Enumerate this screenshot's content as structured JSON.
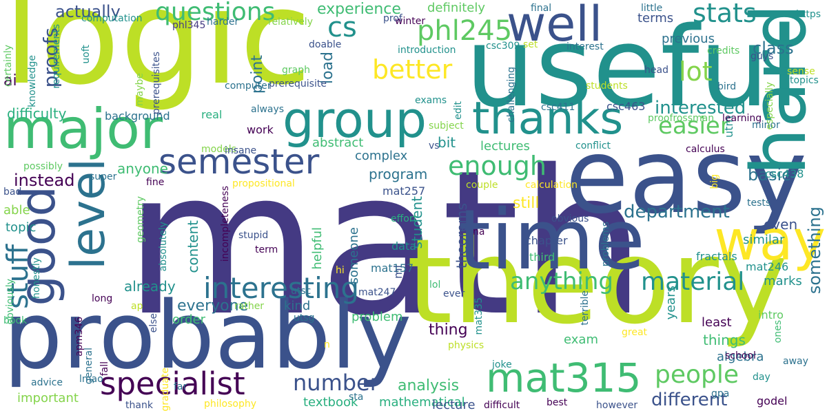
{
  "palette": {
    "lime": "#bddf26",
    "yellow": "#fde725",
    "green": "#5ec962",
    "light_green": "#84d44b",
    "emerald": "#3fbc73",
    "teal": "#21918c",
    "teal_dark": "#2c728e",
    "blue": "#3b528b",
    "indigo": "#443a83",
    "purple": "#440154",
    "mint": "#29af7f"
  },
  "words": [
    {
      "text": "math",
      "color": "indigo"
    },
    {
      "text": "logic",
      "color": "lime"
    },
    {
      "text": "theory",
      "color": "lime"
    },
    {
      "text": "useful",
      "color": "teal"
    },
    {
      "text": "easy",
      "color": "blue"
    },
    {
      "text": "probably",
      "color": "blue"
    },
    {
      "text": "time",
      "color": "blue"
    },
    {
      "text": "hard",
      "color": "teal"
    },
    {
      "text": "way",
      "color": "yellow"
    },
    {
      "text": "major",
      "color": "emerald"
    },
    {
      "text": "good",
      "color": "blue"
    },
    {
      "text": "group",
      "color": "teal"
    },
    {
      "text": "thanks",
      "color": "teal"
    },
    {
      "text": "level",
      "color": "teal_dark"
    },
    {
      "text": "mat315",
      "color": "emerald"
    },
    {
      "text": "well",
      "color": "blue"
    },
    {
      "text": "semester",
      "color": "blue"
    },
    {
      "text": "specialist",
      "color": "purple"
    },
    {
      "text": "interesting",
      "color": "teal_dark"
    },
    {
      "text": "stuff",
      "color": "teal_dark"
    },
    {
      "text": "phl245",
      "color": "green"
    },
    {
      "text": "people",
      "color": "green"
    },
    {
      "text": "better",
      "color": "yellow"
    },
    {
      "text": "easier",
      "color": "green"
    },
    {
      "text": "enough",
      "color": "emerald"
    },
    {
      "text": "material",
      "color": "teal"
    },
    {
      "text": "anything",
      "color": "emerald"
    },
    {
      "text": "stats",
      "color": "teal"
    },
    {
      "text": "questions",
      "color": "emerald"
    },
    {
      "text": "lot",
      "color": "light_green"
    },
    {
      "text": "cs",
      "color": "teal"
    },
    {
      "text": "number",
      "color": "blue"
    },
    {
      "text": "department",
      "color": "teal_dark"
    },
    {
      "text": "interested",
      "color": "teal"
    },
    {
      "text": "proofs",
      "color": "blue"
    },
    {
      "text": "actually",
      "color": "blue"
    },
    {
      "text": "experience",
      "color": "emerald"
    },
    {
      "text": "class",
      "color": "teal_dark"
    },
    {
      "text": "different",
      "color": "blue"
    },
    {
      "text": "something",
      "color": "teal_dark"
    },
    {
      "text": "analysis",
      "color": "emerald"
    },
    {
      "text": "everyone",
      "color": "teal_dark"
    },
    {
      "text": "basic",
      "color": "teal_dark"
    },
    {
      "text": "still",
      "color": "yellow"
    },
    {
      "text": "instead",
      "color": "purple"
    },
    {
      "text": "difficulty",
      "color": "mint"
    },
    {
      "text": "load",
      "color": "teal_dark"
    },
    {
      "text": "point",
      "color": "teal_dark"
    },
    {
      "text": "bit",
      "color": "teal"
    },
    {
      "text": "program",
      "color": "teal_dark"
    },
    {
      "text": "student",
      "color": "teal"
    },
    {
      "text": "theorems",
      "color": "blue"
    },
    {
      "text": "content",
      "color": "teal"
    },
    {
      "text": "already",
      "color": "teal"
    },
    {
      "text": "anyone",
      "color": "emerald"
    },
    {
      "text": "even",
      "color": "blue"
    },
    {
      "text": "similar",
      "color": "teal"
    },
    {
      "text": "marks",
      "color": "teal"
    },
    {
      "text": "lectures",
      "color": "emerald"
    },
    {
      "text": "exam",
      "color": "emerald"
    },
    {
      "text": "things",
      "color": "emerald"
    },
    {
      "text": "years",
      "color": "teal"
    },
    {
      "text": "order",
      "color": "emerald"
    },
    {
      "text": "textbook",
      "color": "mint"
    },
    {
      "text": "mathematical",
      "color": "mint"
    },
    {
      "text": "important",
      "color": "light_green"
    },
    {
      "text": "thing",
      "color": "purple"
    },
    {
      "text": "ai",
      "color": "purple"
    },
    {
      "text": "definitely",
      "color": "green"
    },
    {
      "text": "terms",
      "color": "blue"
    },
    {
      "text": "previous",
      "color": "teal_dark"
    },
    {
      "text": "abstract",
      "color": "emerald"
    },
    {
      "text": "complex",
      "color": "teal_dark"
    },
    {
      "text": "lecture",
      "color": "blue"
    },
    {
      "text": "problem",
      "color": "emerald"
    },
    {
      "text": "helpful",
      "color": "emerald"
    },
    {
      "text": "someone",
      "color": "teal_dark"
    },
    {
      "text": "kind",
      "color": "teal_dark"
    },
    {
      "text": "topic",
      "color": "teal"
    },
    {
      "text": "able",
      "color": "light_green"
    },
    {
      "text": "background",
      "color": "teal_dark"
    },
    {
      "text": "work",
      "color": "purple"
    },
    {
      "text": "real",
      "color": "mint"
    },
    {
      "text": "chapter",
      "color": "blue"
    },
    {
      "text": "third",
      "color": "emerald"
    },
    {
      "text": "least",
      "color": "purple"
    },
    {
      "text": "algebra",
      "color": "teal_dark"
    },
    {
      "text": "csc463",
      "color": "blue"
    },
    {
      "text": "utm",
      "color": "teal"
    },
    {
      "text": "csc438",
      "color": "teal"
    },
    {
      "text": "intro",
      "color": "green"
    },
    {
      "text": "fractals",
      "color": "teal"
    },
    {
      "text": "mat246",
      "color": "teal"
    },
    {
      "text": "mat157",
      "color": "teal_dark"
    },
    {
      "text": "mat257",
      "color": "blue"
    },
    {
      "text": "mat247",
      "color": "blue"
    },
    {
      "text": "mat335",
      "color": "teal"
    },
    {
      "text": "apm346",
      "color": "purple"
    },
    {
      "text": "utsg",
      "color": "teal_dark"
    },
    {
      "text": "utsc",
      "color": "teal_dark"
    },
    {
      "text": "csc411",
      "color": "teal_dark"
    },
    {
      "text": "csc309",
      "color": "teal"
    },
    {
      "text": "phl345",
      "color": "indigo"
    },
    {
      "text": "godel",
      "color": "purple"
    },
    {
      "text": "data",
      "color": "teal"
    },
    {
      "text": "ml",
      "color": "blue"
    },
    {
      "text": "geometry",
      "color": "green"
    },
    {
      "text": "computation",
      "color": "teal"
    },
    {
      "text": "prerequisites",
      "color": "blue"
    },
    {
      "text": "prerequisite",
      "color": "blue"
    },
    {
      "text": "requirements",
      "color": "teal"
    },
    {
      "text": "introduction",
      "color": "teal"
    },
    {
      "text": "calculus",
      "color": "purple"
    },
    {
      "text": "learning",
      "color": "purple"
    },
    {
      "text": "proofrossman",
      "color": "green"
    },
    {
      "text": "conflict",
      "color": "teal"
    },
    {
      "text": "models",
      "color": "light_green"
    },
    {
      "text": "insane",
      "color": "blue"
    },
    {
      "text": "couple",
      "color": "lime"
    },
    {
      "text": "calculation",
      "color": "yellow"
    },
    {
      "text": "propositional",
      "color": "yellow"
    },
    {
      "text": "incompleteness",
      "color": "purple"
    },
    {
      "text": "philosophy",
      "color": "yellow"
    },
    {
      "text": "chaos",
      "color": "lime"
    },
    {
      "text": "physics",
      "color": "lime"
    },
    {
      "text": "general",
      "color": "teal_dark"
    },
    {
      "text": "advice",
      "color": "teal_dark"
    },
    {
      "text": "difficult",
      "color": "purple"
    },
    {
      "text": "however",
      "color": "blue"
    },
    {
      "text": "best",
      "color": "purple"
    },
    {
      "text": "gpa",
      "color": "teal_dark"
    },
    {
      "text": "day",
      "color": "teal"
    },
    {
      "text": "away",
      "color": "teal_dark"
    },
    {
      "text": "ones",
      "color": "emerald"
    },
    {
      "text": "school",
      "color": "purple"
    },
    {
      "text": "tests",
      "color": "teal_dark"
    },
    {
      "text": "big",
      "color": "yellow"
    },
    {
      "text": "obvious",
      "color": "blue"
    },
    {
      "text": "problems",
      "color": "teal_dark"
    },
    {
      "text": "na",
      "color": "purple"
    },
    {
      "text": "effort",
      "color": "mint"
    },
    {
      "text": "stupid",
      "color": "blue"
    },
    {
      "text": "term",
      "color": "purple"
    },
    {
      "text": "hi",
      "color": "yellow"
    },
    {
      "text": "lol",
      "color": "emerald"
    },
    {
      "text": "ever",
      "color": "blue"
    },
    {
      "text": "terrible",
      "color": "teal_dark"
    },
    {
      "text": "joke",
      "color": "teal"
    },
    {
      "text": "sta",
      "color": "teal_dark"
    },
    {
      "text": "n",
      "color": "yellow"
    },
    {
      "text": "far",
      "color": "teal_dark"
    },
    {
      "text": "fall",
      "color": "purple"
    },
    {
      "text": "thank",
      "color": "blue"
    },
    {
      "text": "graduate",
      "color": "yellow"
    },
    {
      "text": "lmao",
      "color": "teal_dark"
    },
    {
      "text": "book",
      "color": "emerald"
    },
    {
      "text": "else",
      "color": "blue"
    },
    {
      "text": "rather",
      "color": "light_green"
    },
    {
      "text": "ap",
      "color": "lime"
    },
    {
      "text": "long",
      "color": "purple"
    },
    {
      "text": "honestly",
      "color": "teal"
    },
    {
      "text": "obviously",
      "color": "emerald"
    },
    {
      "text": "absolutely",
      "color": "teal"
    },
    {
      "text": "possibly",
      "color": "green"
    },
    {
      "text": "super",
      "color": "teal_dark"
    },
    {
      "text": "fine",
      "color": "purple"
    },
    {
      "text": "bad",
      "color": "blue"
    },
    {
      "text": "always",
      "color": "teal_dark"
    },
    {
      "text": "computer",
      "color": "teal_dark"
    },
    {
      "text": "graph",
      "color": "green"
    },
    {
      "text": "maybe",
      "color": "light_green"
    },
    {
      "text": "knowledge",
      "color": "teal"
    },
    {
      "text": "certainly",
      "color": "green"
    },
    {
      "text": "uoft",
      "color": "teal"
    },
    {
      "text": "harder",
      "color": "teal_dark"
    },
    {
      "text": "relatively",
      "color": "light_green"
    },
    {
      "text": "prof",
      "color": "blue"
    },
    {
      "text": "winter",
      "color": "purple"
    },
    {
      "text": "doable",
      "color": "blue"
    },
    {
      "text": "set",
      "color": "lime"
    },
    {
      "text": "interest",
      "color": "teal_dark"
    },
    {
      "text": "credits",
      "color": "green"
    },
    {
      "text": "guys",
      "color": "blue"
    },
    {
      "text": "sense",
      "color": "lime"
    },
    {
      "text": "topics",
      "color": "teal"
    },
    {
      "text": "bird",
      "color": "teal_dark"
    },
    {
      "text": "minor",
      "color": "teal_dark"
    },
    {
      "text": "especially",
      "color": "light_green"
    },
    {
      "text": "head",
      "color": "blue"
    },
    {
      "text": "students",
      "color": "lime"
    },
    {
      "text": "challenging",
      "color": "teal_dark"
    },
    {
      "text": "exams",
      "color": "teal"
    },
    {
      "text": "edit",
      "color": "teal"
    },
    {
      "text": "subject",
      "color": "light_green"
    },
    {
      "text": "vs",
      "color": "blue"
    },
    {
      "text": "final",
      "color": "teal_dark"
    },
    {
      "text": "little",
      "color": "teal_dark"
    },
    {
      "text": "https",
      "color": "teal"
    },
    {
      "text": "great",
      "color": "yellow"
    }
  ]
}
